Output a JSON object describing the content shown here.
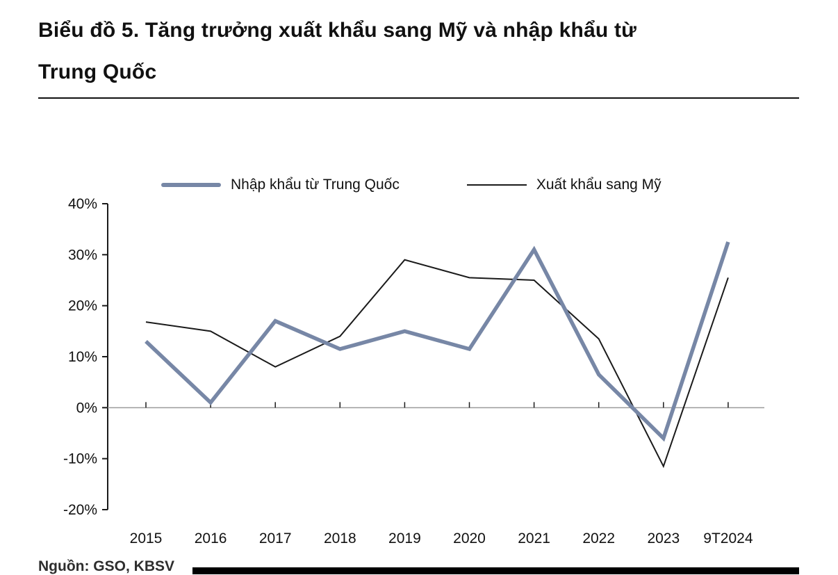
{
  "page": {
    "title_line1": "Biểu đồ 5. Tăng trưởng xuất khẩu sang Mỹ và nhập khẩu từ",
    "title_line2": "Trung Quốc",
    "source": "Nguồn: GSO, KBSV"
  },
  "chart_data": {
    "type": "line",
    "title": "Biểu đồ 5. Tăng trưởng xuất khẩu sang Mỹ và nhập khẩu từ Trung Quốc",
    "categories": [
      "2015",
      "2016",
      "2017",
      "2018",
      "2019",
      "2020",
      "2021",
      "2022",
      "2023",
      "9T2024"
    ],
    "series": [
      {
        "name": "Nhập khẩu từ Trung Quốc",
        "color": "#7787A6",
        "line_width": 5.5,
        "values": [
          13,
          1,
          17,
          11.5,
          15,
          11.5,
          31,
          6.5,
          -6,
          32.5
        ]
      },
      {
        "name": "Xuất khẩu sang Mỹ",
        "color": "#1a1a1a",
        "line_width": 2,
        "values": [
          16.8,
          15,
          8,
          14,
          29,
          25.5,
          25,
          13.5,
          -11.5,
          25.5
        ]
      }
    ],
    "ylim": [
      -20,
      40
    ],
    "ytick_step": 10,
    "ytick_suffix": "%",
    "xlabel": "",
    "ylabel": "",
    "legend_position": "top",
    "grid": false,
    "zero_line_color": "#9b9b9b",
    "axis_color": "#1a1a1a"
  }
}
